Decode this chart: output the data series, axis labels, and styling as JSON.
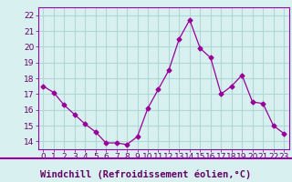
{
  "x": [
    0,
    1,
    2,
    3,
    4,
    5,
    6,
    7,
    8,
    9,
    10,
    11,
    12,
    13,
    14,
    15,
    16,
    17,
    18,
    19,
    20,
    21,
    22,
    23
  ],
  "y": [
    17.5,
    17.1,
    16.3,
    15.7,
    15.1,
    14.6,
    13.9,
    13.9,
    13.8,
    14.3,
    16.1,
    17.3,
    18.5,
    20.5,
    21.7,
    19.9,
    19.3,
    17.0,
    17.5,
    18.2,
    16.5,
    16.4,
    15.0,
    14.5
  ],
  "line_color": "#990099",
  "marker": "D",
  "marker_size": 2.5,
  "bg_color": "#d8f0f0",
  "grid_color": "#b0d8d8",
  "xlabel": "Windchill (Refroidissement éolien,°C)",
  "xlim": [
    -0.5,
    23.5
  ],
  "ylim": [
    13.5,
    22.5
  ],
  "yticks": [
    14,
    15,
    16,
    17,
    18,
    19,
    20,
    21,
    22
  ],
  "xticks": [
    0,
    1,
    2,
    3,
    4,
    5,
    6,
    7,
    8,
    9,
    10,
    11,
    12,
    13,
    14,
    15,
    16,
    17,
    18,
    19,
    20,
    21,
    22,
    23
  ],
  "xlabel_color": "#660066",
  "xlabel_bg": "#d8f0f0",
  "tick_label_color": "#660066",
  "separator_color": "#9900aa",
  "tick_fontsize": 6.5,
  "xlabel_fontsize": 7.5
}
